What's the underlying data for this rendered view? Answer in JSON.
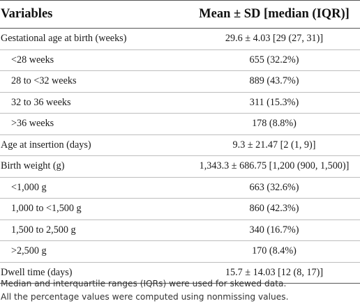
{
  "header": {
    "col1": "Variables",
    "col2": "Mean ± SD [median (IQR)]"
  },
  "rows": [
    {
      "label": "Gestational age at birth (weeks)",
      "value": "29.6 ± 4.03 [29 (27, 31)]",
      "indent": false
    },
    {
      "label": "<28 weeks",
      "value": "655 (32.2%)",
      "indent": true
    },
    {
      "label": "28 to <32 weeks",
      "value": "889 (43.7%)",
      "indent": true
    },
    {
      "label": "32 to 36 weeks",
      "value": "311 (15.3%)",
      "indent": true
    },
    {
      "label": ">36 weeks",
      "value": "178 (8.8%)",
      "indent": true
    },
    {
      "label": "Age at insertion (days)",
      "value": "9.3 ± 21.47 [2 (1, 9)]",
      "indent": false
    },
    {
      "label": "Birth weight (g)",
      "value": "1,343.3 ± 686.75 [1,200 (900, 1,500)]",
      "indent": false
    },
    {
      "label": "<1,000 g",
      "value": "663 (32.6%)",
      "indent": true
    },
    {
      "label": "1,000 to <1,500 g",
      "value": "860 (42.3%)",
      "indent": true
    },
    {
      "label": "1,500 to 2,500 g",
      "value": "340 (16.7%)",
      "indent": true
    },
    {
      "label": ">2,500 g",
      "value": "170 (8.4%)",
      "indent": true
    },
    {
      "label": "Dwell time (days)",
      "value": "15.7 ± 14.03 [12 (8, 17)]",
      "indent": false
    }
  ],
  "notes": [
    "Median and interquartile ranges (IQRs) were used for skewed data.",
    "All the percentage values were computed using nonmissing values."
  ]
}
